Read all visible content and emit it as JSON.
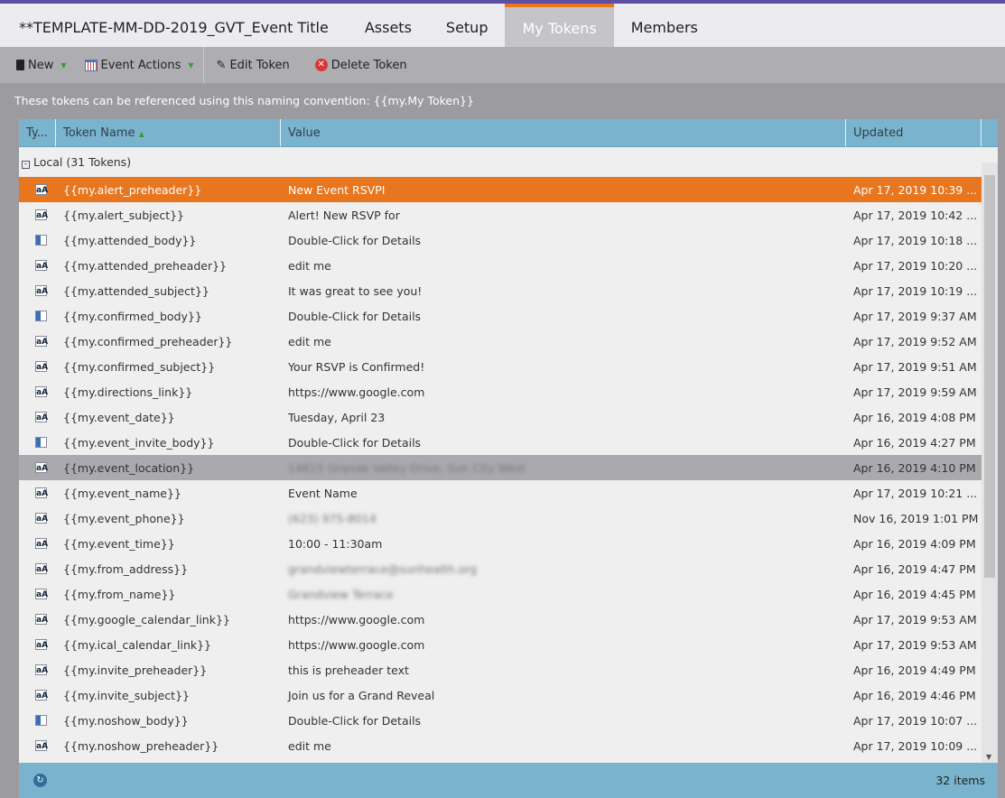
{
  "tabs": [
    {
      "label": "**TEMPLATE-MM-DD-2019_GVT_Event Title"
    },
    {
      "label": "Assets"
    },
    {
      "label": "Setup"
    },
    {
      "label": "My Tokens",
      "active": true
    },
    {
      "label": "Members"
    }
  ],
  "toolbar": {
    "new": "New",
    "event_actions": "Event Actions",
    "edit_token": "Edit Token",
    "delete_token": "Delete Token"
  },
  "info": "These tokens can be referenced using this naming convention: {{my.My Token}}",
  "grid": {
    "headers": {
      "type": "Ty...",
      "name": "Token Name",
      "value": "Value",
      "updated": "Updated"
    },
    "group": "Local (31 Tokens)",
    "rows": [
      {
        "type": "text",
        "name": "{{my.alert_preheader}}",
        "value": "New Event RSVPI",
        "updated": "Apr 17, 2019 10:39 ...",
        "state": "selected"
      },
      {
        "type": "text",
        "name": "{{my.alert_subject}}",
        "value": "Alert! New RSVP for",
        "updated": "Apr 17, 2019 10:42 ..."
      },
      {
        "type": "rich",
        "name": "{{my.attended_body}}",
        "value": "Double-Click for Details",
        "updated": "Apr 17, 2019 10:18 ..."
      },
      {
        "type": "text",
        "name": "{{my.attended_preheader}}",
        "value": "edit me",
        "updated": "Apr 17, 2019 10:20 ..."
      },
      {
        "type": "text",
        "name": "{{my.attended_subject}}",
        "value": "It was great to see you!",
        "updated": "Apr 17, 2019 10:19 ..."
      },
      {
        "type": "rich",
        "name": "{{my.confirmed_body}}",
        "value": "Double-Click for Details",
        "updated": "Apr 17, 2019 9:37 AM"
      },
      {
        "type": "text",
        "name": "{{my.confirmed_preheader}}",
        "value": "edit me",
        "updated": "Apr 17, 2019 9:52 AM"
      },
      {
        "type": "text",
        "name": "{{my.confirmed_subject}}",
        "value": "Your RSVP is Confirmed!",
        "updated": "Apr 17, 2019 9:51 AM"
      },
      {
        "type": "text",
        "name": "{{my.directions_link}}",
        "value": "https://www.google.com",
        "updated": "Apr 17, 2019 9:59 AM"
      },
      {
        "type": "text",
        "name": "{{my.event_date}}",
        "value": "Tuesday, April 23",
        "updated": "Apr 16, 2019 4:08 PM"
      },
      {
        "type": "rich",
        "name": "{{my.event_invite_body}}",
        "value": "Double-Click for Details",
        "updated": "Apr 16, 2019 4:27 PM"
      },
      {
        "type": "text",
        "name": "{{my.event_location}}",
        "value": "14815 Grande Valley Drive, Sun City West",
        "updated": "Apr 16, 2019 4:10 PM",
        "state": "hover",
        "blurred": true
      },
      {
        "type": "text",
        "name": "{{my.event_name}}",
        "value": "Event Name",
        "updated": "Apr 17, 2019 10:21 ..."
      },
      {
        "type": "text",
        "name": "{{my.event_phone}}",
        "value": "(623) 975-8014",
        "updated": "Nov 16, 2019 1:01 PM",
        "blurred": true
      },
      {
        "type": "text",
        "name": "{{my.event_time}}",
        "value": "10:00 - 11:30am",
        "updated": "Apr 16, 2019 4:09 PM"
      },
      {
        "type": "text",
        "name": "{{my.from_address}}",
        "value": "grandviewterrace@sunhealth.org",
        "updated": "Apr 16, 2019 4:47 PM",
        "blurred": true
      },
      {
        "type": "text",
        "name": "{{my.from_name}}",
        "value": "Grandview Terrace",
        "updated": "Apr 16, 2019 4:45 PM",
        "blurred": true
      },
      {
        "type": "text",
        "name": "{{my.google_calendar_link}}",
        "value": "https://www.google.com",
        "updated": "Apr 17, 2019 9:53 AM"
      },
      {
        "type": "text",
        "name": "{{my.ical_calendar_link}}",
        "value": "https://www.google.com",
        "updated": "Apr 17, 2019 9:53 AM"
      },
      {
        "type": "text",
        "name": "{{my.invite_preheader}}",
        "value": "this is preheader text",
        "updated": "Apr 16, 2019 4:49 PM"
      },
      {
        "type": "text",
        "name": "{{my.invite_subject}}",
        "value": "Join us for a Grand Reveal",
        "updated": "Apr 16, 2019 4:46 PM"
      },
      {
        "type": "rich",
        "name": "{{my.noshow_body}}",
        "value": "Double-Click for Details",
        "updated": "Apr 17, 2019 10:07 ..."
      },
      {
        "type": "text",
        "name": "{{my.noshow_preheader}}",
        "value": "edit me",
        "updated": "Apr 17, 2019 10:09 ..."
      }
    ],
    "item_count": "32 items"
  },
  "colors": {
    "accent": "#e8761e",
    "header": "#7ab3cd",
    "brand_bar": "#5b4fa3"
  }
}
